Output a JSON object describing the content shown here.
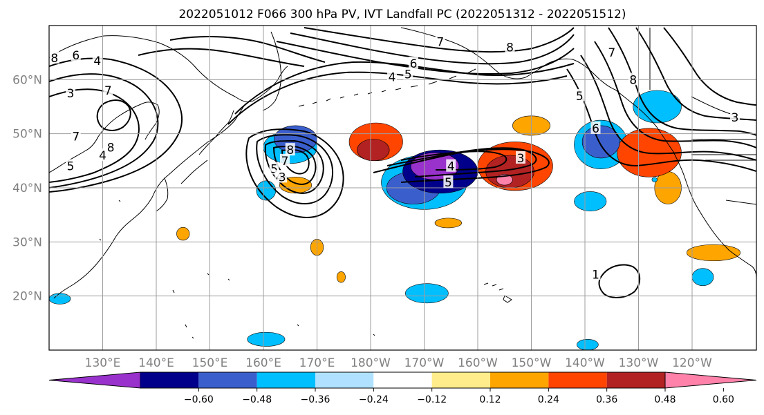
{
  "title": "2022051012 F066 300 hPa PV, IVT Landfall PC (2022051312 - 2022051512)",
  "map": {
    "lon_range": [
      120,
      252
    ],
    "lat_range": [
      10,
      70
    ],
    "lat_ticks": [
      {
        "lat": 60,
        "label": "60°N"
      },
      {
        "lat": 50,
        "label": "50°N"
      },
      {
        "lat": 40,
        "label": "40°N"
      },
      {
        "lat": 30,
        "label": "30°N"
      },
      {
        "lat": 20,
        "label": "20°N"
      }
    ],
    "lon_ticks": [
      {
        "lon": 130,
        "label": "130°E"
      },
      {
        "lon": 140,
        "label": "140°E"
      },
      {
        "lon": 150,
        "label": "150°E"
      },
      {
        "lon": 160,
        "label": "160°E"
      },
      {
        "lon": 170,
        "label": "170°E"
      },
      {
        "lon": 180,
        "label": "180°W"
      },
      {
        "lon": 190,
        "label": "170°W"
      },
      {
        "lon": 200,
        "label": "160°W"
      },
      {
        "lon": 210,
        "label": "150°W"
      },
      {
        "lon": 220,
        "label": "140°W"
      },
      {
        "lon": 230,
        "label": "130°W"
      },
      {
        "lon": 240,
        "label": "120°W"
      }
    ],
    "grid": true,
    "pv_contour_labels": [
      {
        "text": "8",
        "lon": 121,
        "lat": 64
      },
      {
        "text": "6",
        "lon": 125,
        "lat": 64.5
      },
      {
        "text": "4",
        "lon": 129,
        "lat": 63.5
      },
      {
        "text": "3",
        "lon": 124,
        "lat": 57.5
      },
      {
        "text": "7",
        "lon": 131,
        "lat": 58
      },
      {
        "text": "7",
        "lon": 125,
        "lat": 49.5
      },
      {
        "text": "8",
        "lon": 131.5,
        "lat": 47.5
      },
      {
        "text": "4",
        "lon": 130,
        "lat": 46
      },
      {
        "text": "5",
        "lon": 124,
        "lat": 44
      },
      {
        "text": "8",
        "lon": 165,
        "lat": 47
      },
      {
        "text": "7",
        "lon": 164,
        "lat": 45
      },
      {
        "text": "5",
        "lon": 162,
        "lat": 43.5
      },
      {
        "text": "4",
        "lon": 163,
        "lat": 42
      },
      {
        "text": "3",
        "lon": 163.5,
        "lat": 42
      },
      {
        "text": "4",
        "lon": 195,
        "lat": 44
      },
      {
        "text": "5",
        "lon": 194.5,
        "lat": 41
      },
      {
        "text": "3",
        "lon": 208,
        "lat": 45.5
      },
      {
        "text": "8",
        "lon": 206,
        "lat": 66
      },
      {
        "text": "7",
        "lon": 193,
        "lat": 67
      },
      {
        "text": "6",
        "lon": 188,
        "lat": 63
      },
      {
        "text": "5",
        "lon": 187,
        "lat": 61
      },
      {
        "text": "4",
        "lon": 184,
        "lat": 60.5
      },
      {
        "text": "6",
        "lon": 222,
        "lat": 51
      },
      {
        "text": "5",
        "lon": 219,
        "lat": 57
      },
      {
        "text": "8",
        "lon": 229,
        "lat": 60
      },
      {
        "text": "7",
        "lon": 225,
        "lat": 65
      },
      {
        "text": "3",
        "lon": 248,
        "lat": 53
      },
      {
        "text": "1",
        "lon": 222,
        "lat": 24
      }
    ]
  },
  "colorbar": {
    "labels": [
      "−0.60",
      "−0.48",
      "−0.36",
      "−0.24",
      "−0.12",
      "0.12",
      "0.24",
      "0.36",
      "0.48",
      "0.60"
    ],
    "colors": [
      "#9932cc",
      "#00008b",
      "#3a5fcd",
      "#00bfff",
      "#b0e2ff",
      "#ffffff",
      "#ffec8b",
      "#ffa500",
      "#ff4500",
      "#b22222",
      "#ff82ab"
    ]
  },
  "ivt_anomalies": [
    {
      "level": 0.36,
      "color": "#ff4500",
      "lon": 181,
      "lat": 48.5,
      "rx": 5,
      "ry": 3.5
    },
    {
      "level": 0.48,
      "color": "#b22222",
      "lon": 180.5,
      "lat": 47,
      "rx": 3,
      "ry": 2
    },
    {
      "level": 0.24,
      "color": "#ffa500",
      "lon": 210,
      "lat": 51.5,
      "rx": 3.5,
      "ry": 1.8
    },
    {
      "level": 0.36,
      "color": "#ff4500",
      "lon": 207,
      "lat": 44,
      "rx": 7,
      "ry": 4.5
    },
    {
      "level": 0.48,
      "color": "#b22222",
      "lon": 206,
      "lat": 43,
      "rx": 4.5,
      "ry": 3
    },
    {
      "level": 0.6,
      "color": "#ff82ab",
      "lon": 205,
      "lat": 41.5,
      "rx": 1.5,
      "ry": 1
    },
    {
      "level": 0.24,
      "color": "#ffa500",
      "lon": 166,
      "lat": 40.5,
      "rx": 3,
      "ry": 1.5
    },
    {
      "level": 0.36,
      "color": "#ff4500",
      "lon": 232,
      "lat": 46.5,
      "rx": 6,
      "ry": 4.5
    },
    {
      "level": 0.24,
      "color": "#ffa500",
      "lon": 235.5,
      "lat": 40,
      "rx": 2.5,
      "ry": 3
    },
    {
      "level": 0.24,
      "color": "#ffa500",
      "lon": 244,
      "lat": 28,
      "rx": 5,
      "ry": 1.5
    },
    {
      "level": 0.24,
      "color": "#ffa500",
      "lon": 145,
      "lat": 31.5,
      "rx": 1.2,
      "ry": 1.2
    },
    {
      "level": 0.24,
      "color": "#ffa500",
      "lon": 170,
      "lat": 29,
      "rx": 1.2,
      "ry": 1.5
    },
    {
      "level": 0.24,
      "color": "#ffa500",
      "lon": 194.5,
      "lat": 33.5,
      "rx": 2.5,
      "ry": 0.9
    },
    {
      "level": 0.24,
      "color": "#ffa500",
      "lon": 174.5,
      "lat": 23.5,
      "rx": 0.8,
      "ry": 1
    },
    {
      "level": -0.48,
      "color": "#00008b",
      "lon": 193,
      "lat": 43,
      "rx": 7,
      "ry": 4
    },
    {
      "level": -0.6,
      "color": "#9932cc",
      "lon": 192,
      "lat": 44,
      "rx": 4.5,
      "ry": 2.5
    },
    {
      "level": -0.36,
      "color": "#3a5fcd",
      "lon": 188,
      "lat": 40,
      "rx": 5,
      "ry": 3
    },
    {
      "level": -0.24,
      "color": "#00bfff",
      "lon": 190,
      "lat": 41,
      "rx": 8,
      "ry": 5
    },
    {
      "level": -0.36,
      "color": "#3a5fcd",
      "lon": 166,
      "lat": 49,
      "rx": 4,
      "ry": 2.5
    },
    {
      "level": -0.24,
      "color": "#00bfff",
      "lon": 165,
      "lat": 47.5,
      "rx": 5,
      "ry": 3
    },
    {
      "level": -0.36,
      "color": "#3a5fcd",
      "lon": 223,
      "lat": 48.5,
      "rx": 3.5,
      "ry": 3
    },
    {
      "level": -0.24,
      "color": "#00bfff",
      "lon": 223,
      "lat": 48,
      "rx": 5,
      "ry": 4.5
    },
    {
      "level": -0.24,
      "color": "#00bfff",
      "lon": 233.5,
      "lat": 55,
      "rx": 4.5,
      "ry": 3
    },
    {
      "level": -0.24,
      "color": "#00bfff",
      "lon": 160.5,
      "lat": 39.5,
      "rx": 1.8,
      "ry": 1.8
    },
    {
      "level": -0.24,
      "color": "#00bfff",
      "lon": 221,
      "lat": 37.5,
      "rx": 3,
      "ry": 1.8
    },
    {
      "level": -0.24,
      "color": "#00bfff",
      "lon": 190.5,
      "lat": 20.5,
      "rx": 4,
      "ry": 1.8
    },
    {
      "level": -0.24,
      "color": "#00bfff",
      "lon": 160.5,
      "lat": 12,
      "rx": 3.5,
      "ry": 1.3
    },
    {
      "level": -0.24,
      "color": "#00bfff",
      "lon": 242,
      "lat": 23.5,
      "rx": 2,
      "ry": 1.6
    },
    {
      "level": -0.24,
      "color": "#00bfff",
      "lon": 122,
      "lat": 19.5,
      "rx": 2,
      "ry": 1
    },
    {
      "level": -0.24,
      "color": "#00bfff",
      "lon": 220.5,
      "lat": 11,
      "rx": 2,
      "ry": 1
    },
    {
      "level": -0.24,
      "color": "#00bfff",
      "lon": 182,
      "lat": 50.5,
      "rx": 1.2,
      "ry": 0.8
    },
    {
      "level": -0.24,
      "color": "#00bfff",
      "lon": 233,
      "lat": 41.5,
      "rx": 0.5,
      "ry": 0.4
    }
  ]
}
